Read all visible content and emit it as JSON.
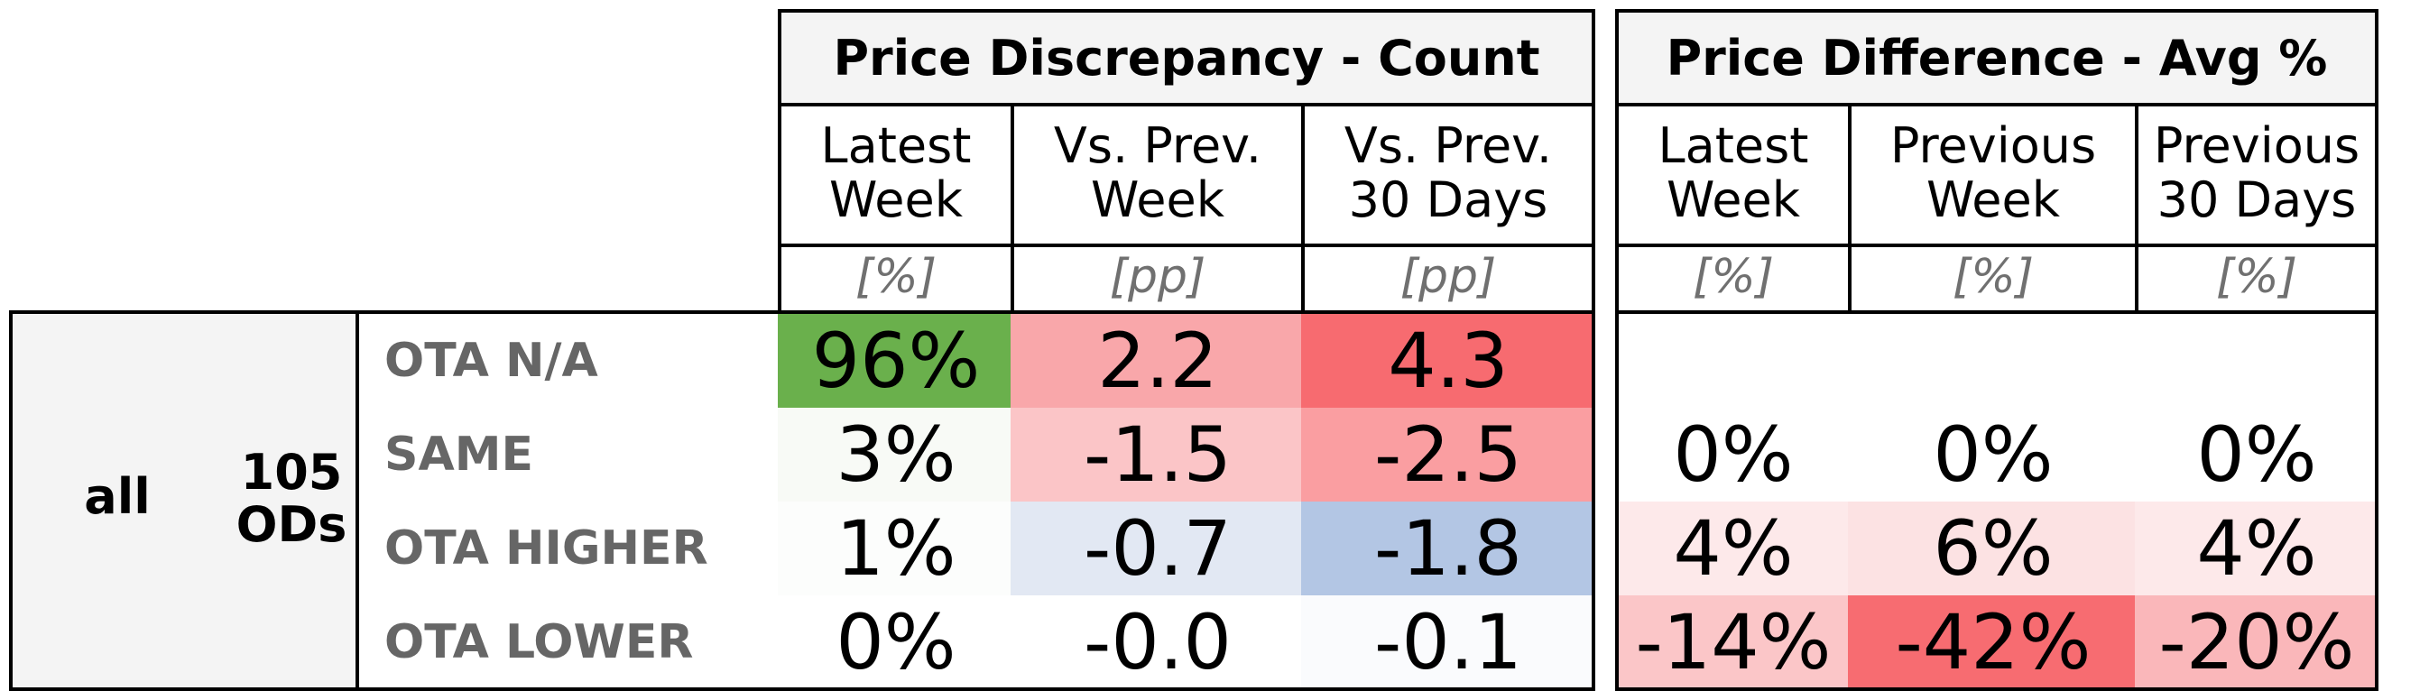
{
  "group": {
    "label": "all",
    "ods": "105\nODs"
  },
  "count_table": {
    "title": "Price Discrepancy - Count",
    "columns": [
      {
        "label": "Latest\nWeek",
        "unit": "[%]"
      },
      {
        "label": "Vs. Prev.\nWeek",
        "unit": "[pp]"
      },
      {
        "label": "Vs. Prev.\n30 Days",
        "unit": "[pp]"
      }
    ]
  },
  "avg_table": {
    "title": "Price Difference - Avg %",
    "columns": [
      {
        "label": "Latest\nWeek",
        "unit": "[%]"
      },
      {
        "label": "Previous\nWeek",
        "unit": "[%]"
      },
      {
        "label": "Previous\n30 Days",
        "unit": "[%]"
      }
    ]
  },
  "rows": [
    {
      "label": "OTA N/A",
      "count": [
        "96%",
        "2.2",
        "4.3"
      ],
      "count_colors": [
        "#6ab04c",
        "#f9a7aa",
        "#f76b70"
      ],
      "avg": [
        "",
        "",
        ""
      ],
      "avg_colors": [
        "#ffffff",
        "#ffffff",
        "#ffffff"
      ]
    },
    {
      "label": "SAME",
      "count": [
        "3%",
        "-1.5",
        "-2.5"
      ],
      "count_colors": [
        "#f8faf6",
        "#fbc5c7",
        "#fa9ea1"
      ],
      "avg": [
        "0%",
        "0%",
        "0%"
      ],
      "avg_colors": [
        "#ffffff",
        "#ffffff",
        "#ffffff"
      ]
    },
    {
      "label": "OTA HIGHER",
      "count": [
        "1%",
        "-0.7",
        "-1.8"
      ],
      "count_colors": [
        "#fcfdfc",
        "#e2e8f3",
        "#b3c6e4"
      ],
      "avg": [
        "4%",
        "6%",
        "4%"
      ],
      "avg_colors": [
        "#fde9ea",
        "#fce2e3",
        "#fde9ea"
      ]
    },
    {
      "label": "OTA LOWER",
      "count": [
        "0%",
        "-0.0",
        "-0.1"
      ],
      "count_colors": [
        "#ffffff",
        "#ffffff",
        "#fafbfd"
      ],
      "avg": [
        "-14%",
        "-42%",
        "-20%"
      ],
      "avg_colors": [
        "#fbc6c8",
        "#f76c71",
        "#fab7ba"
      ]
    }
  ]
}
